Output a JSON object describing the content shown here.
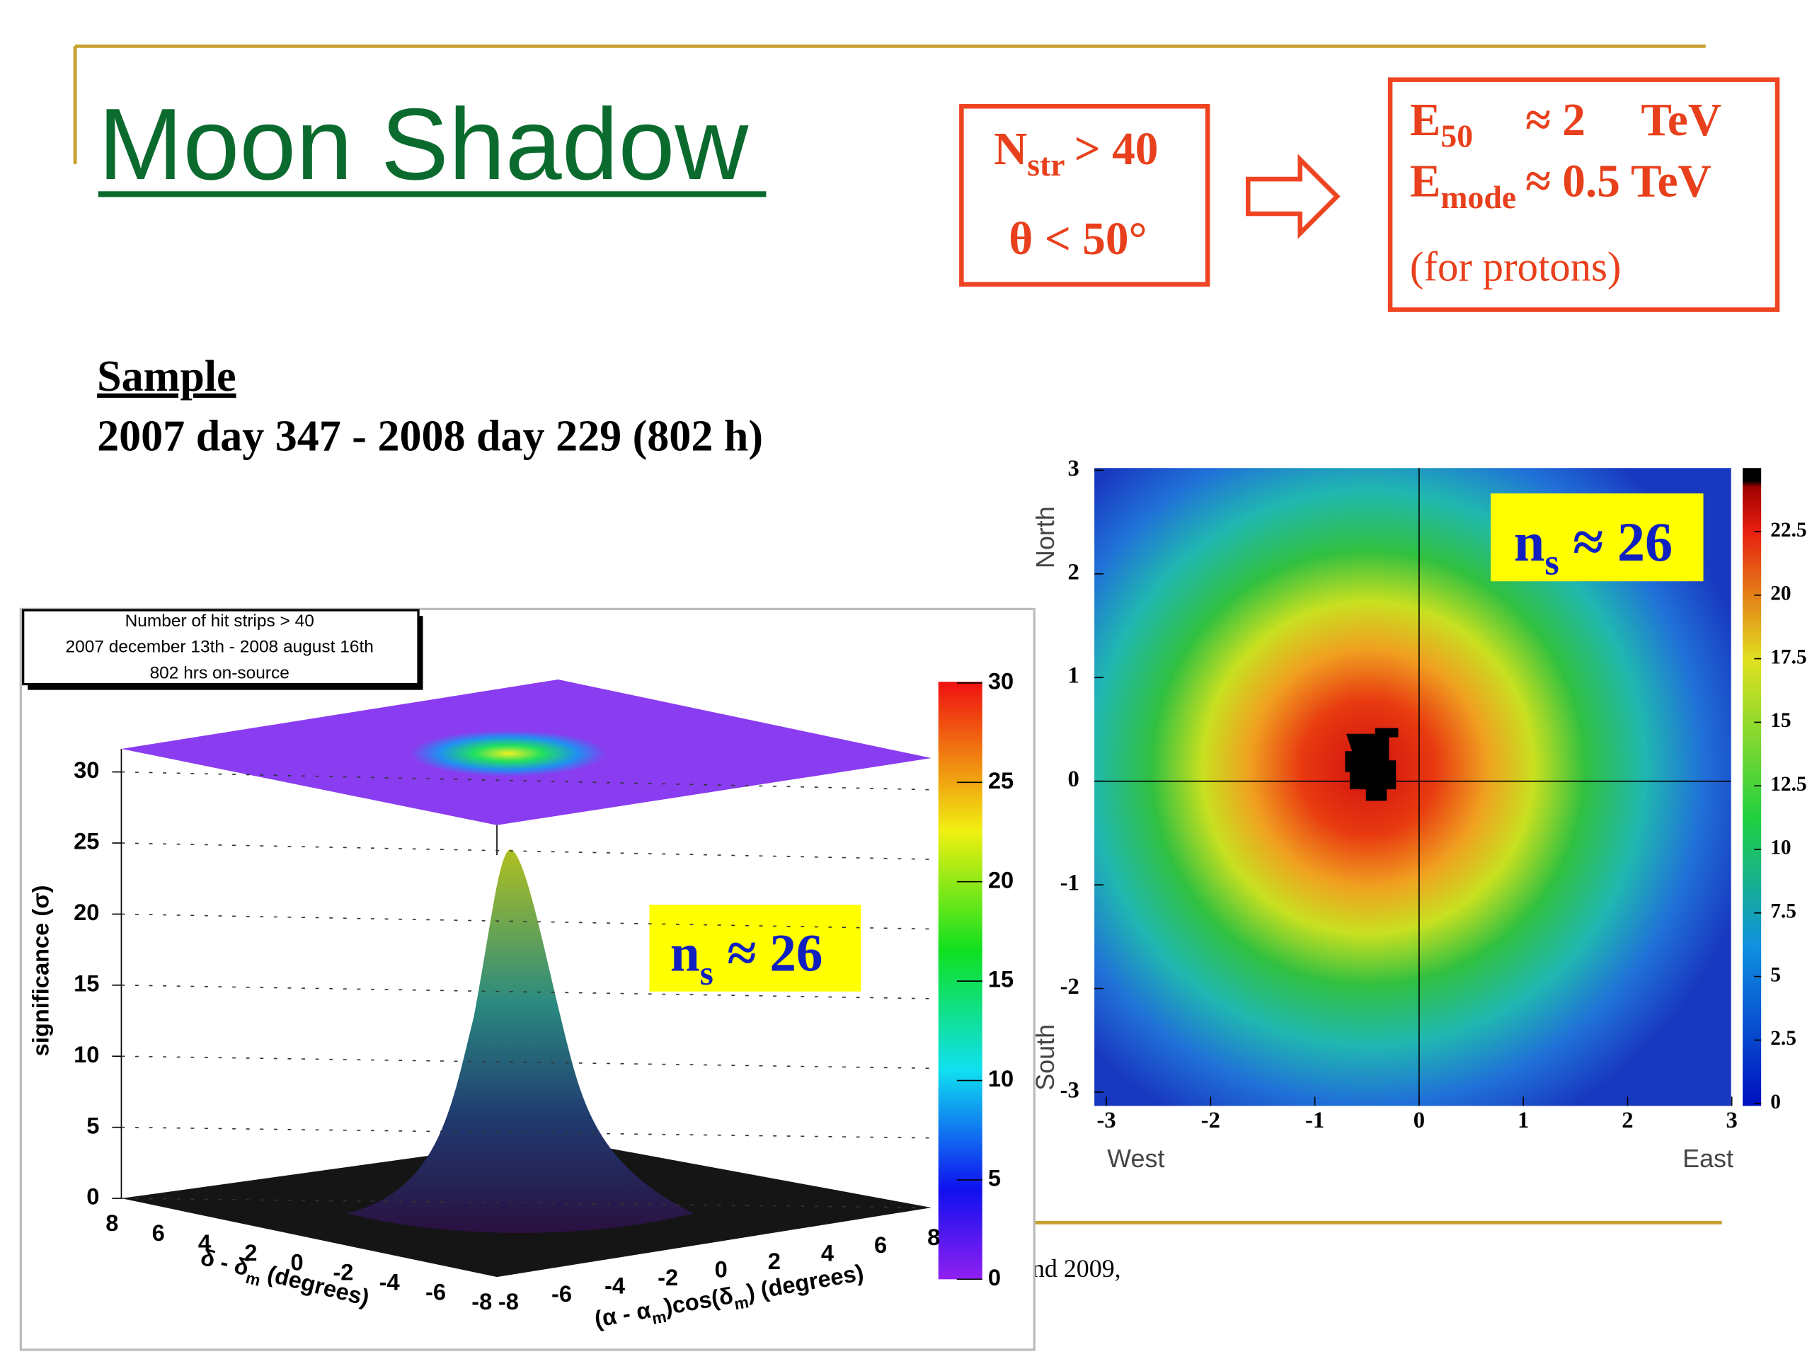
{
  "header": {
    "title": "Moon Shadow"
  },
  "cuts": {
    "line1": {
      "main": "N",
      "sub": "str",
      "rest": "> 40"
    },
    "line2": "θ < 50°"
  },
  "energy": {
    "line1": {
      "main": "E",
      "sub": "50",
      "approx": "≈ 2",
      "unit": "TeV"
    },
    "line2": {
      "main": "E",
      "sub": "mode",
      "rest": "≈ 0.5 TeV"
    },
    "note": "(for protons)"
  },
  "sample": {
    "label": "Sample",
    "range": "2007 day 347 - 2008 day 229 (802 h)"
  },
  "footer": "nd 2009,",
  "left_plot": {
    "legend": [
      "Number of hit strips > 40",
      "2007 december 13th - 2008 august 16th",
      "802 hrs on-source"
    ],
    "z_label": "significance (σ)",
    "z_ticks": [
      0,
      5,
      10,
      15,
      20,
      25,
      30
    ],
    "colorbar_ticks": [
      0,
      5,
      10,
      15,
      20,
      25,
      30
    ],
    "x_ticks": [
      8,
      6,
      4,
      2,
      0,
      -2,
      -4,
      -6,
      -8
    ],
    "x_label": {
      "main": "δ - δ",
      "sub": "m",
      "rest": "(degrees)"
    },
    "y_ticks": [
      -8,
      -6,
      -4,
      -2,
      0,
      2,
      4,
      6,
      8
    ],
    "y_label": {
      "pre": "(α - α",
      "sub1": "m",
      "mid": ")cos(δ",
      "sub2": "m",
      "rest": ") (degrees)"
    },
    "annotation": {
      "main": "n",
      "sub": "s",
      "rest": "≈ 26"
    }
  },
  "right_plot": {
    "y_ticks": [
      3,
      2,
      1,
      0,
      -1,
      -2,
      -3
    ],
    "x_ticks": [
      -3,
      -2,
      -1,
      0,
      1,
      2,
      3
    ],
    "north": "North",
    "south": "South",
    "west": "West",
    "east": "East",
    "colorbar_ticks": [
      0,
      2.5,
      5,
      7.5,
      10,
      12.5,
      15,
      17.5,
      20,
      22.5
    ],
    "annotation": {
      "main": "n",
      "sub": "s",
      "rest": "≈ 26"
    }
  }
}
